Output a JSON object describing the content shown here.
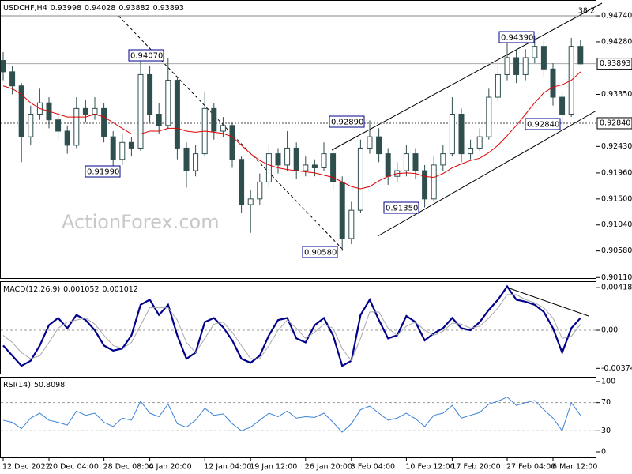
{
  "chart_data": [
    {
      "type": "candlestick",
      "title": "USDCHF,H4",
      "header_values": [
        0.93998,
        0.94028,
        0.93882,
        0.93893
      ],
      "watermark": "ActionForex.com",
      "color": "#2f4f4f",
      "categories": [
        "12 Dec 2022",
        null,
        null,
        null,
        null,
        "20 Dec 04:00",
        null,
        null,
        null,
        null,
        null,
        "28 Dec 08:00",
        null,
        null,
        null,
        null,
        "4 Jan 20:00",
        null,
        null,
        null,
        null,
        null,
        "12 Jan 04:00",
        null,
        null,
        null,
        null,
        "19 Jan 12:00",
        null,
        null,
        null,
        null,
        null,
        "26 Jan 20:00",
        null,
        null,
        null,
        null,
        "3 Feb 04:00",
        null,
        null,
        null,
        null,
        null,
        "10 Feb 12:00",
        null,
        null,
        null,
        null,
        "17 Feb 20:00",
        null,
        null,
        null,
        null,
        null,
        "27 Feb 04:00",
        null,
        null,
        null,
        null,
        "6 Mar 12:00",
        null,
        null,
        null
      ],
      "open": [
        0.9395,
        0.9375,
        0.935,
        0.926,
        0.93,
        0.932,
        0.929,
        0.927,
        0.9245,
        0.931,
        0.93,
        0.931,
        0.926,
        0.922,
        0.925,
        0.924,
        0.937,
        0.93,
        0.928,
        0.936,
        0.924,
        0.92,
        0.923,
        0.931,
        0.927,
        0.928,
        0.922,
        0.914,
        0.915,
        0.918,
        0.923,
        0.921,
        0.924,
        0.92,
        0.921,
        0.9205,
        0.923,
        0.918,
        0.908,
        0.913,
        0.924,
        0.926,
        0.923,
        0.919,
        0.92,
        0.923,
        0.92,
        0.915,
        0.921,
        0.923,
        0.93,
        0.923,
        0.924,
        0.926,
        0.933,
        0.937,
        0.94,
        0.937,
        0.94,
        0.942,
        0.938,
        0.933,
        0.93,
        0.942
      ],
      "high": [
        0.941,
        0.9385,
        0.9355,
        0.9315,
        0.9345,
        0.933,
        0.9305,
        0.928,
        0.933,
        0.9325,
        0.933,
        0.932,
        0.927,
        0.9265,
        0.926,
        0.9407,
        0.9385,
        0.932,
        0.94,
        0.9365,
        0.925,
        0.9245,
        0.934,
        0.932,
        0.9295,
        0.9285,
        0.9225,
        0.9165,
        0.9195,
        0.9245,
        0.924,
        0.927,
        0.925,
        0.9225,
        0.922,
        0.925,
        0.924,
        0.919,
        0.9145,
        0.9255,
        0.9289,
        0.9275,
        0.924,
        0.9215,
        0.9245,
        0.924,
        0.921,
        0.9225,
        0.9245,
        0.933,
        0.931,
        0.9255,
        0.9275,
        0.9345,
        0.9385,
        0.9439,
        0.9415,
        0.9415,
        0.9438,
        0.943,
        0.939,
        0.934,
        0.9435,
        0.9431
      ],
      "low": [
        0.936,
        0.9335,
        0.9215,
        0.9245,
        0.929,
        0.9275,
        0.9255,
        0.923,
        0.924,
        0.9285,
        0.929,
        0.925,
        0.9199,
        0.921,
        0.9225,
        0.9235,
        0.9285,
        0.9265,
        0.9275,
        0.922,
        0.917,
        0.919,
        0.9225,
        0.9255,
        0.926,
        0.9205,
        0.9125,
        0.909,
        0.914,
        0.917,
        0.9195,
        0.92,
        0.9185,
        0.919,
        0.919,
        0.92,
        0.9165,
        0.9058,
        0.907,
        0.9125,
        0.923,
        0.9215,
        0.9175,
        0.918,
        0.919,
        0.9185,
        0.9135,
        0.9145,
        0.92,
        0.9225,
        0.9215,
        0.922,
        0.9235,
        0.9255,
        0.932,
        0.936,
        0.9355,
        0.936,
        0.939,
        0.9365,
        0.9315,
        0.9284,
        0.9295,
        0.9388
      ],
      "close": [
        0.9375,
        0.935,
        0.926,
        0.93,
        0.932,
        0.929,
        0.927,
        0.9245,
        0.931,
        0.93,
        0.931,
        0.926,
        0.922,
        0.925,
        0.924,
        0.937,
        0.93,
        0.928,
        0.936,
        0.924,
        0.92,
        0.923,
        0.931,
        0.927,
        0.928,
        0.922,
        0.914,
        0.915,
        0.918,
        0.923,
        0.921,
        0.924,
        0.92,
        0.921,
        0.9205,
        0.923,
        0.918,
        0.908,
        0.913,
        0.924,
        0.926,
        0.923,
        0.919,
        0.92,
        0.923,
        0.92,
        0.915,
        0.921,
        0.923,
        0.93,
        0.923,
        0.924,
        0.926,
        0.933,
        0.937,
        0.94,
        0.937,
        0.94,
        0.942,
        0.938,
        0.933,
        0.93,
        0.942,
        0.9389
      ],
      "ma": {
        "color": "#e00000",
        "values": [
          0.935,
          0.9345,
          0.9335,
          0.932,
          0.931,
          0.9305,
          0.93,
          0.9295,
          0.9295,
          0.9295,
          0.93,
          0.9295,
          0.9285,
          0.9275,
          0.9265,
          0.9265,
          0.927,
          0.927,
          0.9275,
          0.9275,
          0.927,
          0.9268,
          0.927,
          0.9268,
          0.9266,
          0.926,
          0.9245,
          0.923,
          0.9218,
          0.921,
          0.9205,
          0.9202,
          0.92,
          0.9198,
          0.9196,
          0.9192,
          0.9188,
          0.918,
          0.9172,
          0.9168,
          0.9172,
          0.9182,
          0.919,
          0.9195,
          0.9196,
          0.9195,
          0.919,
          0.9188,
          0.9195,
          0.9205,
          0.9212,
          0.9218,
          0.9222,
          0.9232,
          0.9245,
          0.9262,
          0.928,
          0.93,
          0.932,
          0.9338,
          0.9348,
          0.9352,
          0.936,
          0.9375
        ]
      },
      "ylim": [
        0.901,
        0.9502
      ],
      "yticks": [
        {
          "value": 0.9474,
          "label": "0.94740"
        },
        {
          "value": 0.9428,
          "label": "0.94280"
        },
        {
          "value": 0.9335,
          "label": "0.93350"
        },
        {
          "value": 0.9243,
          "label": "0.92430"
        },
        {
          "value": 0.9196,
          "label": "0.91960"
        },
        {
          "value": 0.915,
          "label": "0.91500"
        },
        {
          "value": 0.9104,
          "label": "0.91040"
        },
        {
          "value": 0.9058,
          "label": "0.90580"
        },
        {
          "value": 0.9011,
          "label": "0.90110"
        }
      ],
      "fibo": {
        "level": 38.2,
        "price": 0.9474
      },
      "price_lines": [
        0.93893,
        {
          "value": 0.9284,
          "label": "0.92840"
        }
      ],
      "annotations": [
        {
          "value": 0.9407,
          "label": "0.94070"
        },
        {
          "value": 0.9199,
          "label": "0.91990"
        },
        {
          "value": 0.9289,
          "label": "0.92890"
        },
        {
          "value": 0.9058,
          "label": "0.90580"
        },
        {
          "value": 0.9135,
          "label": "0.91350"
        },
        {
          "value": 0.9439,
          "label": "0.94390"
        },
        {
          "value": 0.9284,
          "label": "0.92840"
        }
      ]
    },
    {
      "type": "line",
      "title": "MACD(12,26,9)",
      "header_values": [
        0.001052,
        0.001012
      ],
      "series": [
        {
          "color": "#00008b",
          "values": [
            -0.0015,
            -0.0025,
            -0.0035,
            -0.003,
            -0.0015,
            0.0005,
            0.0012,
            0.0002,
            0.0015,
            0.001,
            0,
            -0.0015,
            -0.002,
            -0.0018,
            -0.0005,
            0.0025,
            0.003,
            0.0015,
            0.0025,
            -0.0005,
            -0.0028,
            -0.0022,
            0.0008,
            0.0012,
            0.0003,
            -0.001,
            -0.0028,
            -0.0032,
            -0.0025,
            -0.0005,
            0.001,
            0.0012,
            -0.0008,
            -0.0012,
            0.0005,
            0.0012,
            -0.0005,
            -0.0035,
            -0.003,
            0.0015,
            0.003,
            0.001,
            -0.0008,
            -0.0005,
            0.0014,
            0.0008,
            -0.001,
            -0.0003,
            0.0002,
            0.0012,
            0.0002,
            0,
            0.0008,
            0.002,
            0.003,
            0.0043,
            0.003,
            0.0028,
            0.0025,
            0.0018,
            0.0002,
            -0.0022,
            0.0002,
            0.0012
          ]
        },
        {
          "color": "#a8a8a8",
          "values": [
            -0.0005,
            -0.0012,
            -0.0022,
            -0.0028,
            -0.0025,
            -0.0012,
            0.0002,
            0.0008,
            0.001,
            0.0012,
            0.0006,
            -0.0005,
            -0.0015,
            -0.0018,
            -0.0012,
            0.0005,
            0.0022,
            0.0022,
            0.0022,
            0.001,
            -0.0012,
            -0.0022,
            -0.0008,
            0.0006,
            0.0008,
            -0.0002,
            -0.0015,
            -0.0028,
            -0.0028,
            -0.0015,
            0,
            0.001,
            0.0002,
            -0.0008,
            -0.0002,
            0.0006,
            0.0002,
            -0.0018,
            -0.003,
            -0.0008,
            0.0018,
            0.0018,
            0.0002,
            -0.0005,
            0.0004,
            0.0008,
            0,
            -0.0005,
            -0.0001,
            0.0007,
            0.0006,
            0.0002,
            0.0004,
            0.0012,
            0.0022,
            0.0035,
            0.0035,
            0.003,
            0.0027,
            0.0022,
            0.0012,
            -0.0008,
            -0.0006,
            0.0006
          ]
        }
      ],
      "ylim": [
        -0.00434,
        0.00481
      ],
      "yticks": [
        0.00418,
        {
          "value": 0,
          "label": "0.00"
        },
        -0.003744
      ],
      "levels": [
        0
      ]
    },
    {
      "type": "line",
      "title": "RSI(14)",
      "header_values": [
        50.8098
      ],
      "series": [
        {
          "color": "#3b82d6",
          "values": [
            45,
            42,
            33,
            48,
            55,
            45,
            42,
            38,
            58,
            52,
            55,
            42,
            36,
            48,
            45,
            72,
            55,
            50,
            68,
            40,
            35,
            45,
            62,
            52,
            54,
            40,
            30,
            35,
            45,
            55,
            50,
            58,
            48,
            50,
            49,
            55,
            42,
            28,
            40,
            60,
            65,
            55,
            45,
            48,
            55,
            47,
            36,
            52,
            55,
            66,
            48,
            52,
            56,
            68,
            72,
            78,
            66,
            70,
            73,
            60,
            48,
            30,
            70,
            52
          ]
        }
      ],
      "ylim": [
        -9,
        106.7
      ],
      "yticks": [
        100,
        70,
        30,
        0
      ],
      "levels": [
        30,
        70
      ]
    }
  ]
}
